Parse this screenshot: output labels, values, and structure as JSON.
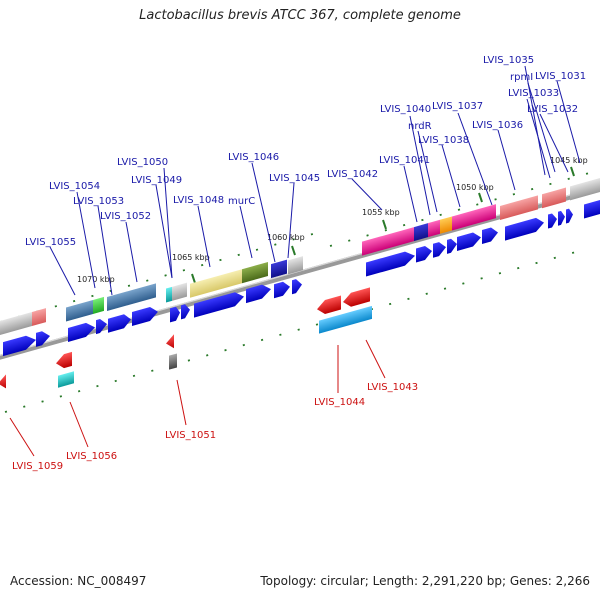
{
  "title": "Lactobacillus brevis ATCC 367, complete genome",
  "accession": "Accession: NC_008497",
  "stats": "Topology: circular; Length: 2,291,220 bp; Genes: 2,266",
  "kbp_labels": [
    "1045 kbp",
    "1050 kbp",
    "1055 kbp",
    "1060 kbp",
    "1065 kbp",
    "1070 kbp"
  ],
  "forward_labels": [
    "LVIS_1035",
    "rpmI",
    "LVIS_1031",
    "LVIS_1033",
    "LVIS_1032",
    "LVIS_1040",
    "LVIS_1037",
    "nrdR",
    "LVIS_1038",
    "LVIS_1036",
    "LVIS_1050",
    "LVIS_1046",
    "LVIS_1041",
    "LVIS_1049",
    "LVIS_1045",
    "LVIS_1042",
    "LVIS_1054",
    "LVIS_1053",
    "LVIS_1048",
    "murC",
    "LVIS_1052",
    "LVIS_1055"
  ],
  "reverse_labels": [
    "LVIS_1043",
    "LVIS_1044",
    "LVIS_1051",
    "LVIS_1056",
    "LVIS_1059"
  ],
  "colors": {
    "forward_label": "#1a1aa8",
    "reverse_label": "#cc1111",
    "arrow_blue": "#0a0ae6",
    "backbone": "#777777",
    "tick_green": "#2a7a2a"
  }
}
